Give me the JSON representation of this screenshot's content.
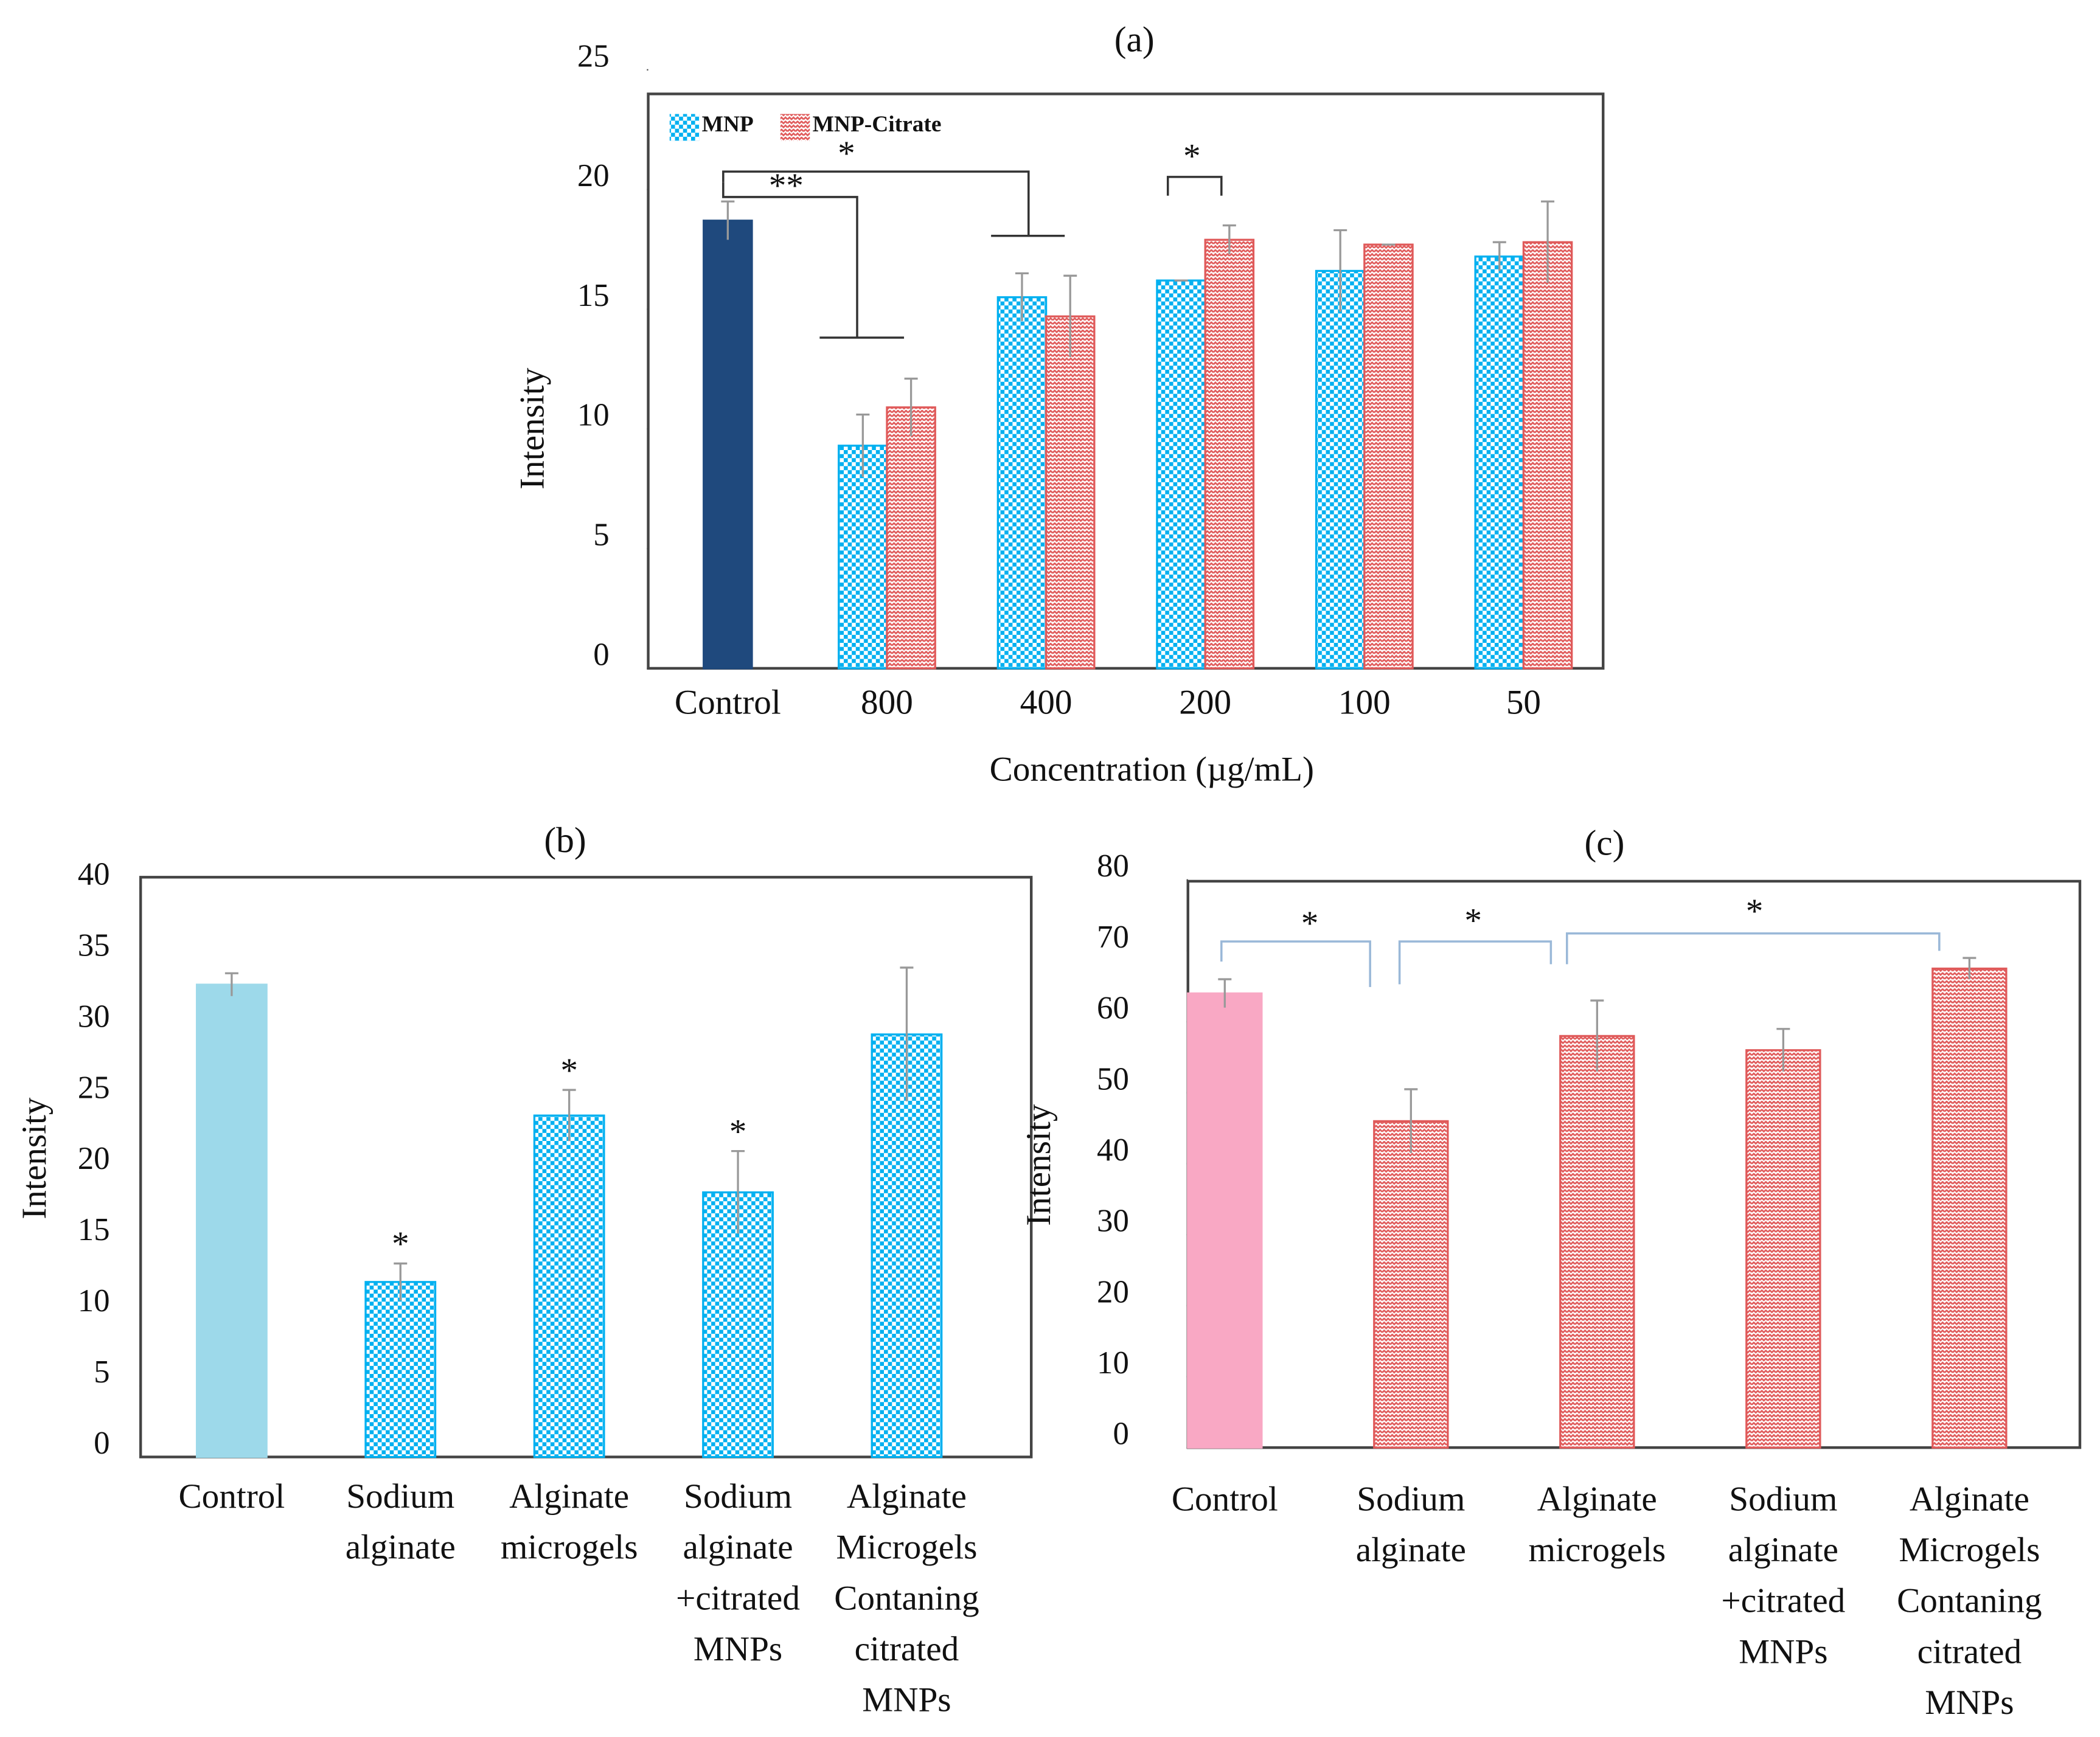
{
  "chart_data": [
    {
      "type": "bar",
      "title": "(a)",
      "x_label": "Concentration (µg/mL)",
      "y_label": "Intensity",
      "categories": [
        "Control",
        "800",
        "400",
        "200",
        "100",
        "50"
      ],
      "series": [
        {
          "color": "#1f497d",
          "pattern": "solid",
          "values": [
            18.7,
            null,
            null,
            null,
            null,
            null
          ],
          "errors": [
            0.8,
            null,
            null,
            null,
            null,
            null
          ]
        },
        {
          "name": "MNP",
          "color": "#00b0f0",
          "pattern": "checker",
          "values": [
            null,
            9.3,
            15.5,
            16.2,
            16.6,
            17.2
          ],
          "errors": [
            null,
            1.3,
            1.0,
            0,
            1.7,
            0.6
          ]
        },
        {
          "name": "MNP-Citrate",
          "color": "#e05a5a",
          "pattern": "zigzag",
          "values": [
            null,
            10.9,
            14.7,
            17.9,
            17.7,
            17.8
          ],
          "errors": [
            null,
            1.2,
            1.7,
            0.6,
            0,
            1.7
          ]
        }
      ],
      "ylim": [
        0,
        25
      ],
      "yticks": [
        0,
        5,
        10,
        15,
        20,
        25
      ],
      "legend": "upper left",
      "annotations": [
        "**",
        "*",
        "*"
      ]
    },
    {
      "type": "bar",
      "title": "(b)",
      "y_label": "Intensity",
      "categories": [
        "Control",
        "Sodium alginate",
        "Alginate microgels",
        "Sodium alginate +citrated MNPs",
        "Alginate Microgels Contaning citrated MNPs"
      ],
      "values": [
        33.2,
        12.3,
        24.0,
        18.6,
        29.7
      ],
      "errors": [
        0.8,
        1.3,
        1.8,
        2.9,
        4.7
      ],
      "colors": [
        "#9dd9ea",
        "#00b0f0",
        "#00b0f0",
        "#00b0f0",
        "#00b0f0"
      ],
      "patterns": [
        "solid",
        "checker",
        "checker",
        "checker",
        "checker"
      ],
      "ylim": [
        0,
        40
      ],
      "yticks": [
        0,
        5,
        10,
        15,
        20,
        25,
        30,
        35,
        40
      ],
      "annotations": [
        null,
        "*",
        "*",
        "*",
        null
      ]
    },
    {
      "type": "bar",
      "title": "(c)",
      "y_label": "Intensity",
      "categories": [
        "Control",
        "Sodium alginate",
        "Alginate microgels",
        "Sodium alginate +citrated MNPs",
        "Alginate Microgels Contaning citrated MNPs"
      ],
      "values": [
        64,
        46,
        58,
        56,
        67.5
      ],
      "errors": [
        2,
        4.5,
        5,
        3,
        1.5
      ],
      "colors": [
        "#f9a8c4",
        "#e05a5a",
        "#e05a5a",
        "#e05a5a",
        "#e05a5a"
      ],
      "patterns": [
        "solid",
        "zigzag",
        "zigzag",
        "zigzag",
        "zigzag"
      ],
      "ylim": [
        0,
        80
      ],
      "yticks": [
        0,
        10,
        20,
        30,
        40,
        50,
        60,
        70,
        80
      ],
      "annotations": [
        "*",
        "*",
        "*"
      ]
    }
  ]
}
